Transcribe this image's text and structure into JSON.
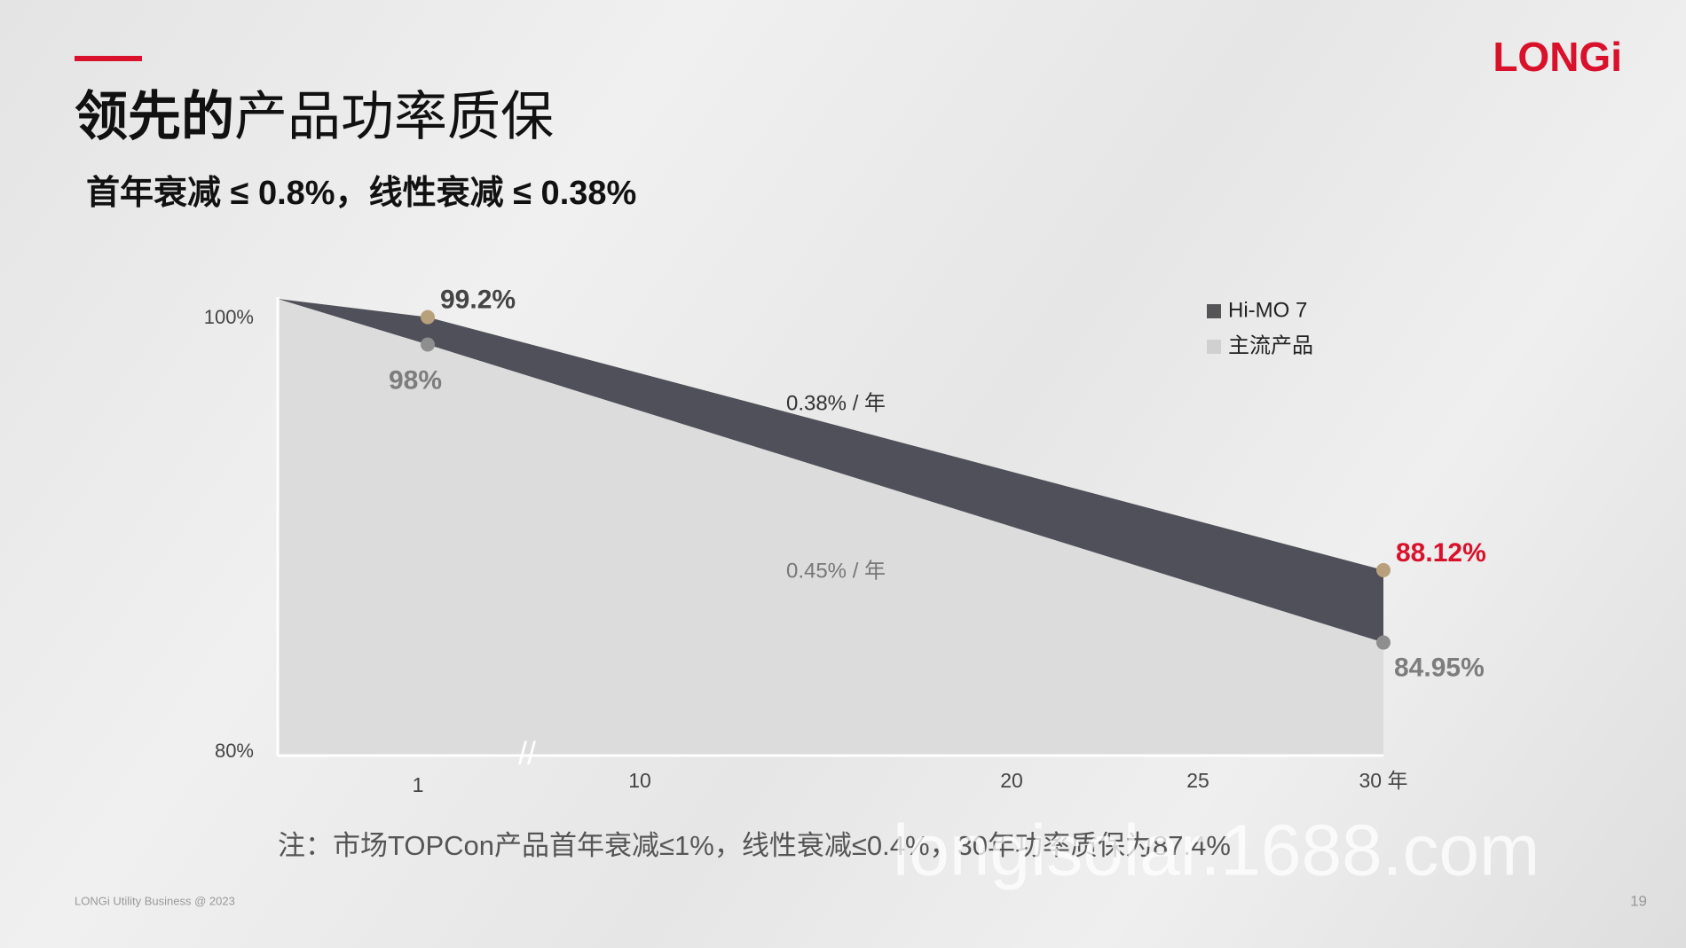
{
  "header": {
    "title_bold": "领先的",
    "title": "产品功率质保",
    "subtitle": "首年衰减 ≤ 0.8%，线性衰减 ≤ 0.38%",
    "logo": "LONGi"
  },
  "chart_data": {
    "type": "area",
    "x": [
      0,
      1,
      30
    ],
    "xlim": [
      0,
      30
    ],
    "xticks": [
      1,
      10,
      20,
      25,
      {
        "value": 30,
        "label": "30 年"
      }
    ],
    "ylim": [
      80,
      100
    ],
    "yticks": [
      {
        "value": 80,
        "label": "80%"
      },
      {
        "value": 100,
        "label": "100%"
      }
    ],
    "series": [
      {
        "name": "Hi-MO 7",
        "color": "#4f5059",
        "marker_color": "#b9a07c",
        "values": [
          100,
          99.2,
          88.12
        ],
        "value_labels": [
          null,
          "99.2%",
          "88.12%"
        ]
      },
      {
        "name": "主流产品",
        "color": "#dcdcdc",
        "marker_color": "#8e8e8e",
        "values": [
          100,
          98,
          84.95
        ],
        "value_labels": [
          null,
          "98%",
          "84.95%"
        ]
      }
    ],
    "annotations": [
      "0.38% / 年",
      "0.45% / 年"
    ],
    "legend": "top-right"
  },
  "note": "注：市场TOPCon产品首年衰减≤1%，线性衰减≤0.4%，30年功率质保为87.4%",
  "footer": {
    "text": "LONGi Utility Business @ 2023",
    "page": "19"
  },
  "watermark": "longisolar.1688.com"
}
